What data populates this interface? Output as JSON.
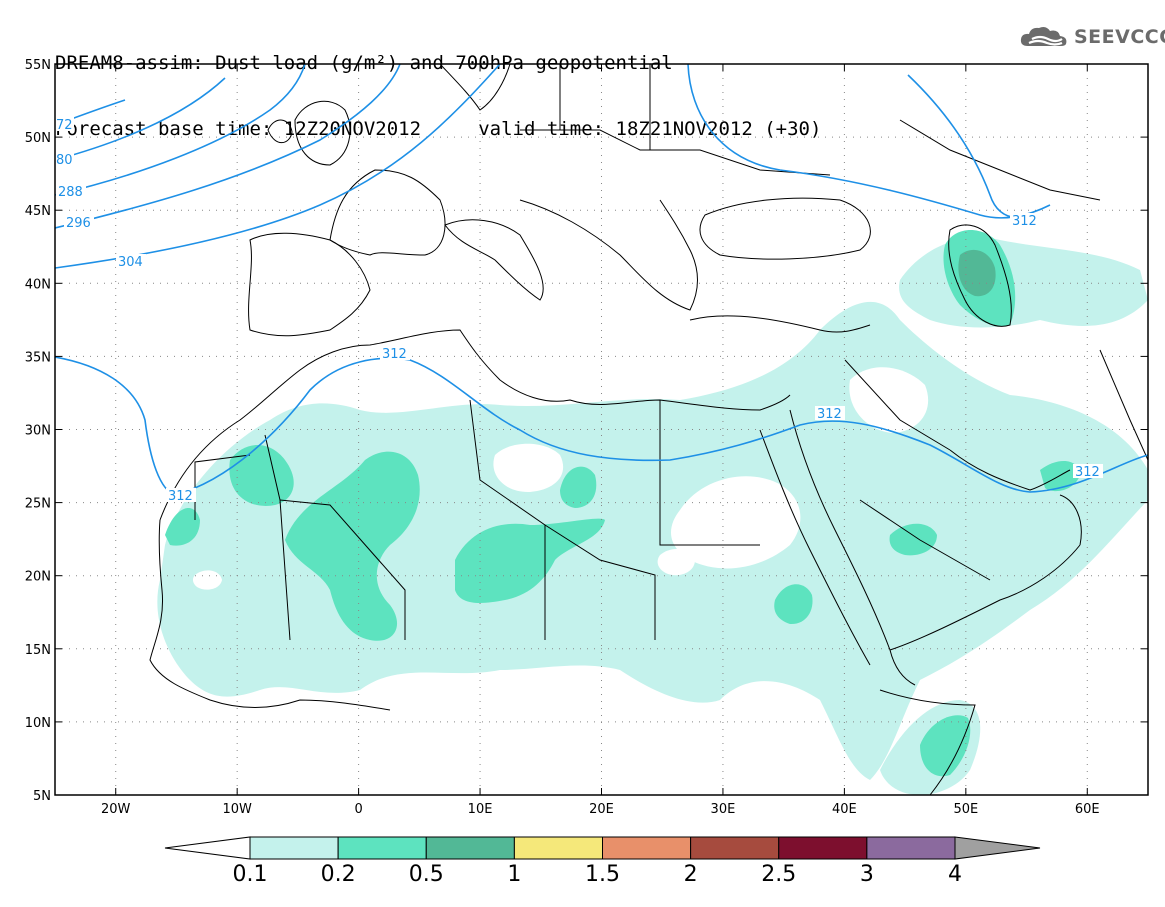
{
  "header": {
    "line1": "DREAM8-assim: Dust load (g/m²) and 700hPa geopotential",
    "line2": "Forecast base time: 12Z20NOV2012     valid time: 18Z21NOV2012 (+30)"
  },
  "logo": {
    "text": "SEEVCCC",
    "icon": "cloud-logo-icon",
    "color": "#6b6b6b"
  },
  "map": {
    "lon_range": [
      -25,
      65
    ],
    "lat_range": [
      5,
      55
    ],
    "lat_ticks": [
      "55N",
      "50N",
      "45N",
      "40N",
      "35N",
      "30N",
      "25N",
      "20N",
      "15N",
      "10N",
      "5N"
    ],
    "lon_ticks": [
      "20W",
      "10W",
      "0",
      "10E",
      "20E",
      "30E",
      "40E",
      "50E",
      "60E"
    ],
    "grid": true,
    "contour_color": "#1e90e6",
    "contour_labels": [
      "72",
      "80",
      "288",
      "296",
      "304",
      "312",
      "312",
      "312",
      "312"
    ]
  },
  "colorbar": {
    "colors": [
      "#ffffff",
      "#c4f2ec",
      "#5de3bf",
      "#52b896",
      "#f5e87a",
      "#e8906a",
      "#a64b3e",
      "#7d0f2e",
      "#8b6a9e",
      "#a0a0a0"
    ],
    "labels": [
      "0.1",
      "0.2",
      "0.5",
      "1",
      "1.5",
      "2",
      "2.5",
      "3",
      "4"
    ]
  }
}
